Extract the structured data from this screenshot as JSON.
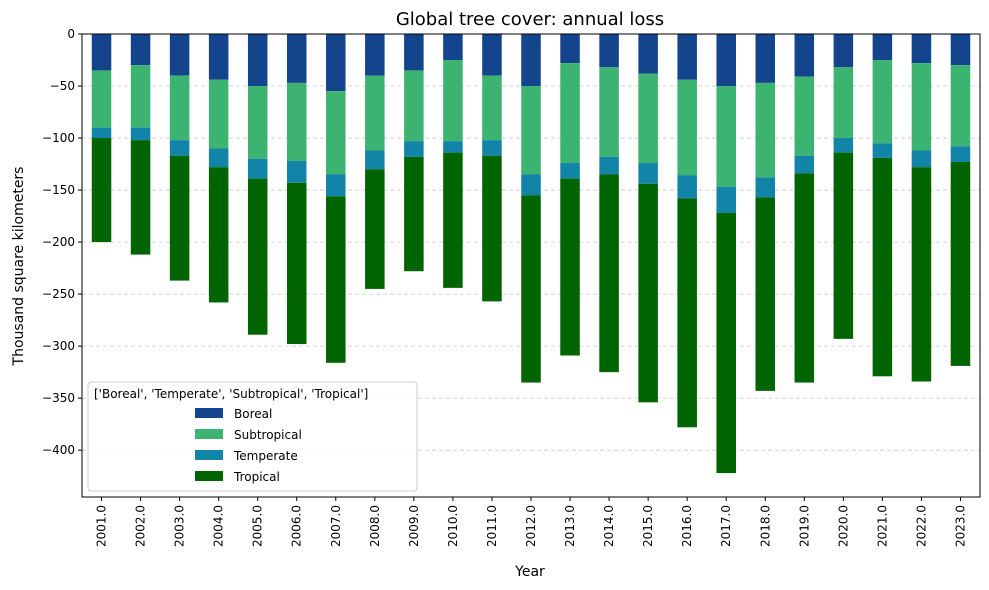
{
  "chart_data": {
    "type": "bar",
    "stacked": true,
    "title": "Global tree cover: annual loss",
    "xlabel": "Year",
    "ylabel": "Thousand square kilometers",
    "ylim": [
      -445,
      0
    ],
    "yticks": [
      0,
      -50,
      -100,
      -150,
      -200,
      -250,
      -300,
      -350,
      -400
    ],
    "grid": "horizontal dashed",
    "legend_title": "['Boreal', 'Temperate', 'Subtropical', 'Tropical']",
    "legend_placement": "lower-left",
    "categories": [
      "2001.0",
      "2002.0",
      "2003.0",
      "2004.0",
      "2005.0",
      "2006.0",
      "2007.0",
      "2008.0",
      "2009.0",
      "2010.0",
      "2011.0",
      "2012.0",
      "2013.0",
      "2014.0",
      "2015.0",
      "2016.0",
      "2017.0",
      "2018.0",
      "2019.0",
      "2020.0",
      "2021.0",
      "2022.0",
      "2023.0"
    ],
    "series": [
      {
        "name": "Boreal",
        "color": "#13448c",
        "values": [
          -35,
          -30,
          -40,
          -44,
          -50,
          -47,
          -55,
          -40,
          -35,
          -25,
          -40,
          -50,
          -28,
          -32,
          -38,
          -44,
          -50,
          -47,
          -41,
          -32,
          -25,
          -28,
          -30
        ]
      },
      {
        "name": "Subtropical",
        "color": "#3cb371",
        "values": [
          -55,
          -60,
          -62,
          -66,
          -70,
          -75,
          -80,
          -72,
          -68,
          -78,
          -62,
          -85,
          -96,
          -86,
          -86,
          -92,
          -97,
          -91,
          -76,
          -68,
          -80,
          -84,
          -78
        ]
      },
      {
        "name": "Temperate",
        "color": "#1284a8",
        "values": [
          -10,
          -12,
          -15,
          -18,
          -19,
          -21,
          -21,
          -18,
          -15,
          -11,
          -15,
          -20,
          -15,
          -17,
          -20,
          -22,
          -25,
          -19,
          -17,
          -14,
          -14,
          -16,
          -15
        ]
      },
      {
        "name": "Tropical",
        "color": "#006400",
        "values": [
          -100,
          -110,
          -120,
          -130,
          -150,
          -155,
          -160,
          -115,
          -110,
          -130,
          -140,
          -180,
          -170,
          -190,
          -210,
          -220,
          -250,
          -186,
          -201,
          -179,
          -210,
          -206,
          -196
        ]
      }
    ]
  }
}
